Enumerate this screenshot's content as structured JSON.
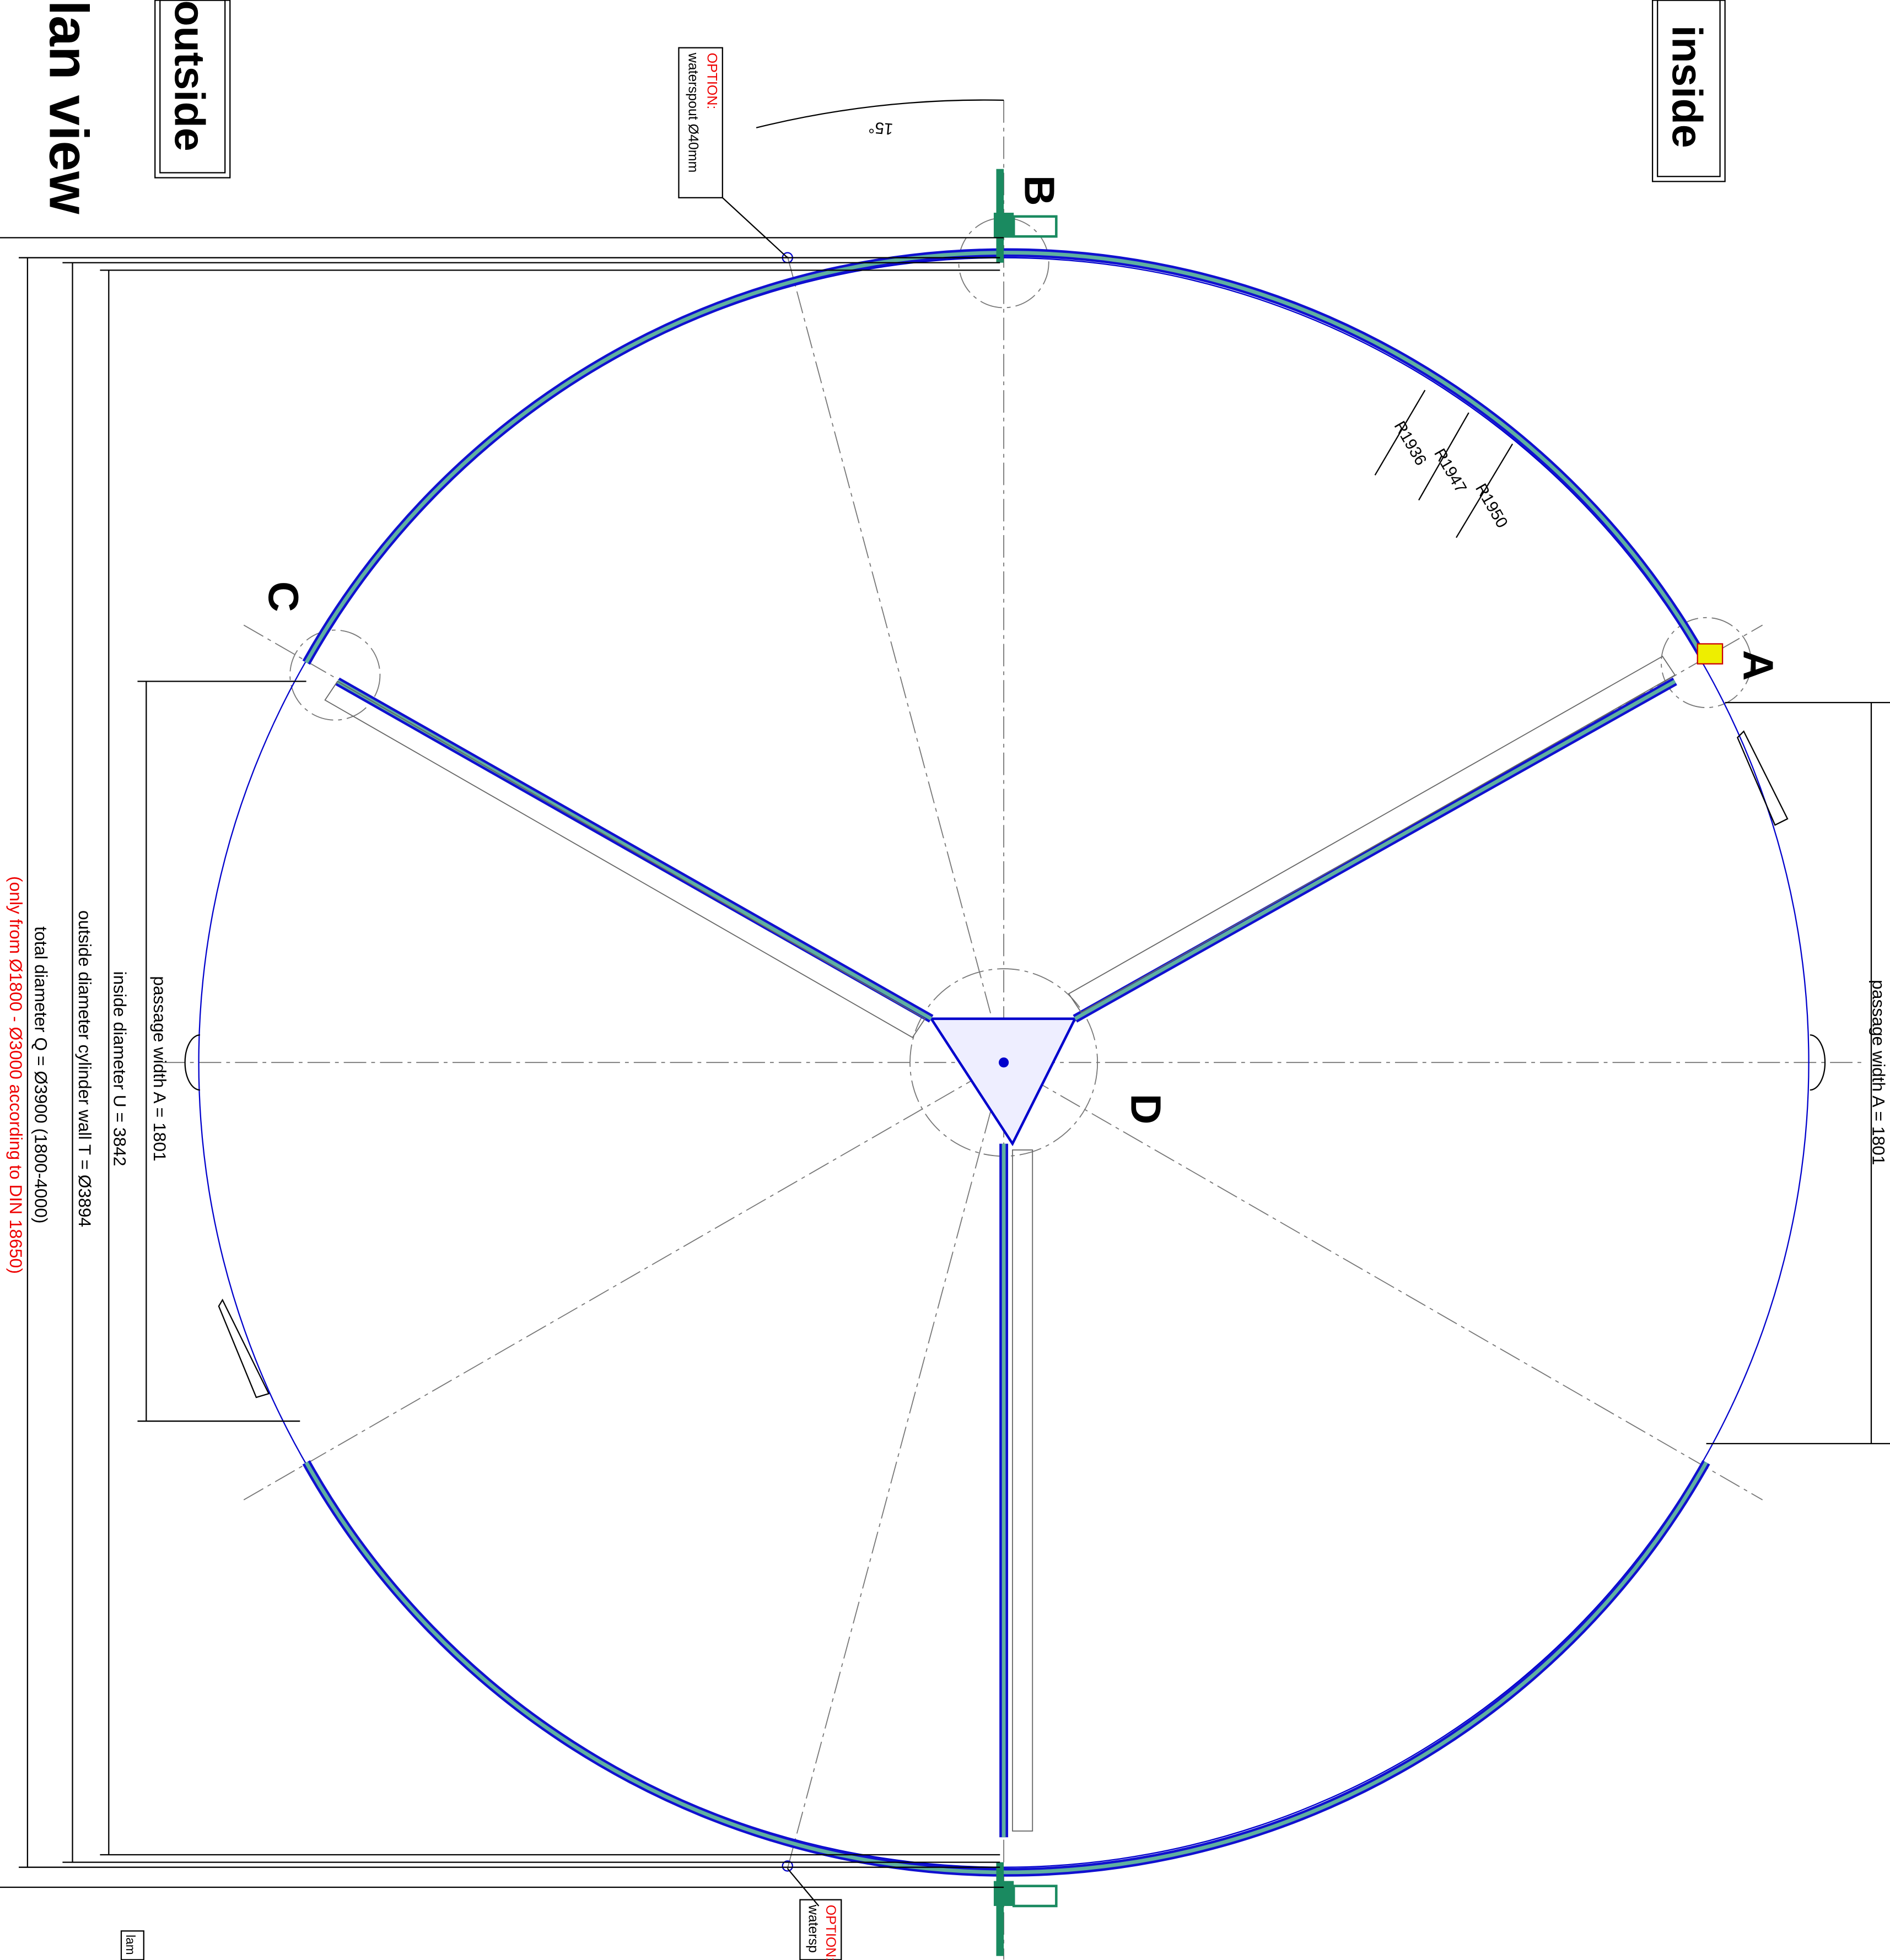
{
  "title": "lan view",
  "sides": {
    "outside": "outside",
    "inside": "inside"
  },
  "options": [
    {
      "label": "OPTION:",
      "text": "waterspout Ø40mm"
    },
    {
      "label": "OPTION:",
      "text": "watersp"
    }
  ],
  "angle": "15°",
  "points": {
    "a": "A",
    "b": "B",
    "c": "C",
    "d": "D"
  },
  "radii": [
    "R1936",
    "R1947",
    "R1950"
  ],
  "dimensions": {
    "passage_left": "passage width A = 1801",
    "passage_right": "passage width A = 1801",
    "inside": "inside diameter U = 3842",
    "outside": "outside diameter cylinder wall T = Ø3894",
    "total": "total diameter Q = Ø3900 (1800-4000)",
    "note": "(only from Ø1800 - Ø3000 according to DIN 18650)"
  },
  "lamp": "lam"
}
